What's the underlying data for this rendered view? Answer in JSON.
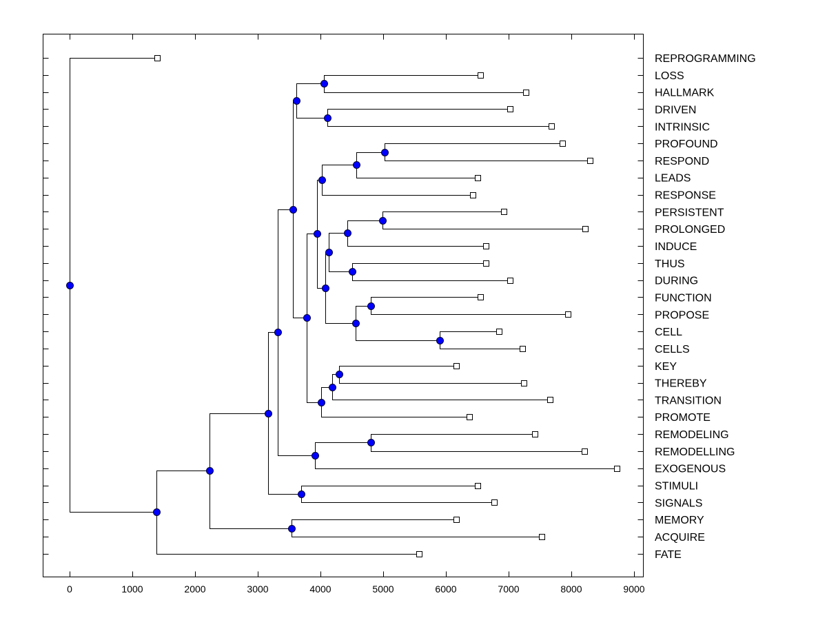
{
  "chart_data": {
    "type": "dendrogram",
    "title": "",
    "xlabel": "",
    "ylabel": "",
    "xlim": [
      -430,
      9300
    ],
    "xticks": [
      0,
      1000,
      2000,
      3000,
      4000,
      5000,
      6000,
      7000,
      8000,
      9000
    ],
    "xtick_labels": [
      "0",
      "1000",
      "2000",
      "3000",
      "4000",
      "5000",
      "6000",
      "7000",
      "8000",
      "9000"
    ],
    "grid": false,
    "leaf_label_side": "right",
    "colors": {
      "node_fill": "#0000ff",
      "node_stroke": "#000033",
      "leaf_fill": "#ffffff",
      "line": "#000000"
    },
    "leaves": [
      {
        "id": "REPROGRAMMING",
        "label": "REPROGRAMMING",
        "value": 1400
      },
      {
        "id": "LOSS",
        "label": "LOSS",
        "value": 6550
      },
      {
        "id": "HALLMARK",
        "label": "HALLMARK",
        "value": 7270
      },
      {
        "id": "DRIVEN",
        "label": "DRIVEN",
        "value": 7020
      },
      {
        "id": "INTRINSIC",
        "label": "INTRINSIC",
        "value": 7680
      },
      {
        "id": "PROFOUND",
        "label": "PROFOUND",
        "value": 7860
      },
      {
        "id": "RESPOND",
        "label": "RESPOND",
        "value": 8300
      },
      {
        "id": "LEADS",
        "label": "LEADS",
        "value": 6510
      },
      {
        "id": "RESPONSE",
        "label": "RESPONSE",
        "value": 6430
      },
      {
        "id": "PERSISTENT",
        "label": "PERSISTENT",
        "value": 6920
      },
      {
        "id": "PROLONGED",
        "label": "PROLONGED",
        "value": 8220
      },
      {
        "id": "INDUCE",
        "label": "INDUCE",
        "value": 6640
      },
      {
        "id": "THUS",
        "label": "THUS",
        "value": 6640
      },
      {
        "id": "DURING",
        "label": "DURING",
        "value": 7020
      },
      {
        "id": "FUNCTION",
        "label": "FUNCTION",
        "value": 6550
      },
      {
        "id": "PROPOSE",
        "label": "PROPOSE",
        "value": 7940
      },
      {
        "id": "CELL",
        "label": "CELL",
        "value": 6850
      },
      {
        "id": "CELLS",
        "label": "CELLS",
        "value": 7220
      },
      {
        "id": "KEY",
        "label": "KEY",
        "value": 6170
      },
      {
        "id": "THEREBY",
        "label": "THEREBY",
        "value": 7240
      },
      {
        "id": "TRANSITION",
        "label": "TRANSITION",
        "value": 7660
      },
      {
        "id": "PROMOTE",
        "label": "PROMOTE",
        "value": 6370
      },
      {
        "id": "REMODELING",
        "label": "REMODELING",
        "value": 7420
      },
      {
        "id": "REMODELLING",
        "label": "REMODELLING",
        "value": 8210
      },
      {
        "id": "EXOGENOUS",
        "label": "EXOGENOUS",
        "value": 8720
      },
      {
        "id": "STIMULI",
        "label": "STIMULI",
        "value": 6510
      },
      {
        "id": "SIGNALS",
        "label": "SIGNALS",
        "value": 6770
      },
      {
        "id": "MEMORY",
        "label": "MEMORY",
        "value": 6160
      },
      {
        "id": "ACQUIRE",
        "label": "ACQUIRE",
        "value": 7530
      },
      {
        "id": "FATE",
        "label": "FATE",
        "value": 5570
      }
    ],
    "nodes": [
      {
        "id": "n0",
        "value": 0,
        "children": [
          "REPROGRAMMING",
          "n1"
        ]
      },
      {
        "id": "n1",
        "value": 1390,
        "children": [
          "n2",
          "FATE"
        ]
      },
      {
        "id": "n2",
        "value": 2230,
        "children": [
          "n3",
          "n4"
        ]
      },
      {
        "id": "n4",
        "value": 3540,
        "children": [
          "MEMORY",
          "ACQUIRE"
        ]
      },
      {
        "id": "n3",
        "value": 3160,
        "children": [
          "n5",
          "n6"
        ]
      },
      {
        "id": "n6",
        "value": 3690,
        "children": [
          "STIMULI",
          "SIGNALS"
        ]
      },
      {
        "id": "n5",
        "value": 3320,
        "children": [
          "n7",
          "n8"
        ]
      },
      {
        "id": "n8",
        "value": 3910,
        "children": [
          "n9",
          "EXOGENOUS"
        ]
      },
      {
        "id": "n9",
        "value": 4800,
        "children": [
          "REMODELING",
          "REMODELLING"
        ]
      },
      {
        "id": "n7",
        "value": 3560,
        "children": [
          "n10",
          "n11"
        ]
      },
      {
        "id": "n10",
        "value": 3620,
        "children": [
          "n12",
          "n13"
        ]
      },
      {
        "id": "n12",
        "value": 4060,
        "children": [
          "LOSS",
          "HALLMARK"
        ]
      },
      {
        "id": "n13",
        "value": 4110,
        "children": [
          "DRIVEN",
          "INTRINSIC"
        ]
      },
      {
        "id": "n11",
        "value": 3780,
        "children": [
          "n14",
          "n15"
        ]
      },
      {
        "id": "n15",
        "value": 4010,
        "children": [
          "n16",
          "PROMOTE"
        ]
      },
      {
        "id": "n16",
        "value": 4190,
        "children": [
          "n17",
          "TRANSITION"
        ]
      },
      {
        "id": "n17",
        "value": 4300,
        "children": [
          "KEY",
          "THEREBY"
        ]
      },
      {
        "id": "n14",
        "value": 3950,
        "children": [
          "n18",
          "n19"
        ]
      },
      {
        "id": "n18",
        "value": 4020,
        "children": [
          "n20",
          "RESPONSE"
        ]
      },
      {
        "id": "n20",
        "value": 4570,
        "children": [
          "n21",
          "LEADS"
        ]
      },
      {
        "id": "n21",
        "value": 5020,
        "children": [
          "PROFOUND",
          "RESPOND"
        ]
      },
      {
        "id": "n19",
        "value": 4080,
        "children": [
          "n22",
          "n23"
        ]
      },
      {
        "id": "n22",
        "value": 4130,
        "children": [
          "n24",
          "n25"
        ]
      },
      {
        "id": "n24",
        "value": 4430,
        "children": [
          "n26",
          "INDUCE"
        ]
      },
      {
        "id": "n26",
        "value": 4990,
        "children": [
          "PERSISTENT",
          "PROLONGED"
        ]
      },
      {
        "id": "n25",
        "value": 4510,
        "children": [
          "THUS",
          "DURING"
        ]
      },
      {
        "id": "n23",
        "value": 4560,
        "children": [
          "n27",
          "n28"
        ]
      },
      {
        "id": "n27",
        "value": 4800,
        "children": [
          "FUNCTION",
          "PROPOSE"
        ]
      },
      {
        "id": "n28",
        "value": 5900,
        "children": [
          "CELL",
          "CELLS"
        ]
      }
    ],
    "root": "n0"
  }
}
